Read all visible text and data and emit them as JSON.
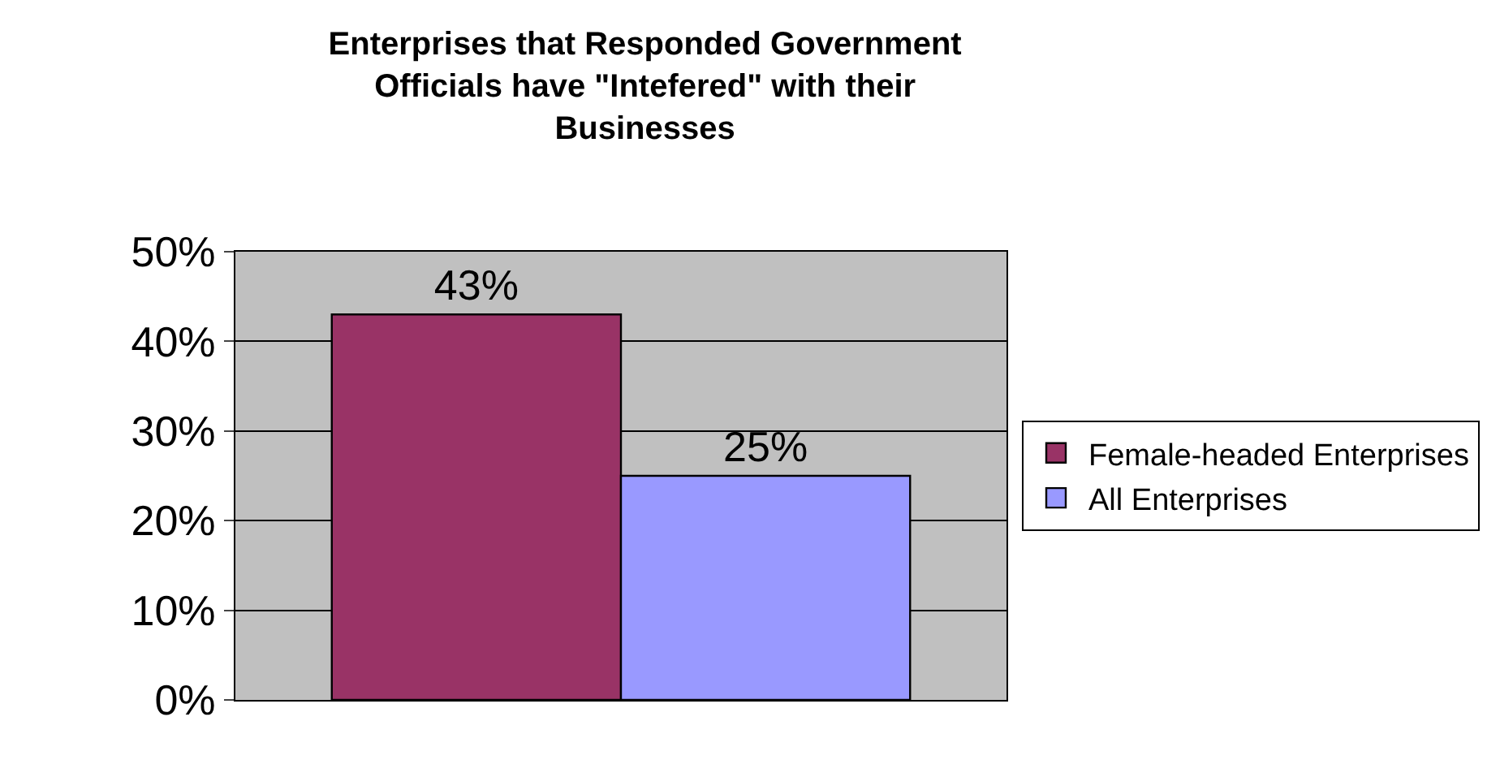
{
  "chart_data": {
    "type": "bar",
    "title": "Enterprises that Responded Government Officials have \"Intefered\" with their Businesses",
    "categories": [
      null
    ],
    "series": [
      {
        "name": "Female-headed Enterprises",
        "color": "#993366",
        "values": [
          43
        ],
        "value_labels": [
          "43%"
        ]
      },
      {
        "name": "All Enterprises",
        "color": "#9999ff",
        "values": [
          25
        ],
        "value_labels": [
          "25%"
        ]
      }
    ],
    "ylim": [
      0,
      50
    ],
    "yticks": [
      {
        "value": 0,
        "label": "0%"
      },
      {
        "value": 10,
        "label": "10%"
      },
      {
        "value": 20,
        "label": "20%"
      },
      {
        "value": 30,
        "label": "30%"
      },
      {
        "value": 40,
        "label": "40%"
      },
      {
        "value": 50,
        "label": "50%"
      }
    ],
    "grid": "y",
    "legend": "right"
  }
}
